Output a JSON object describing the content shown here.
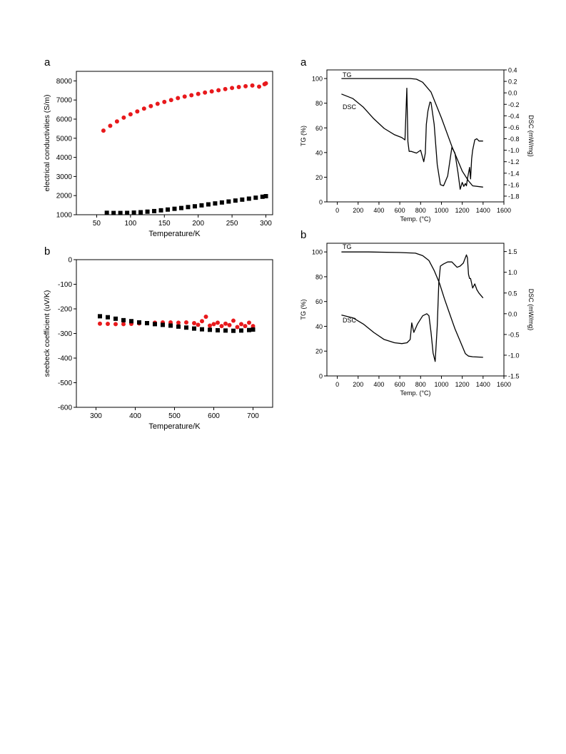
{
  "chart_data": [
    {
      "panel": "a",
      "type": "scatter",
      "xlabel": "Temperature/K",
      "ylabel": "electrical conductivities (S/m)",
      "xlim": [
        20,
        310
      ],
      "ylim": [
        1000,
        8500
      ],
      "xticks": [
        50,
        100,
        150,
        200,
        250,
        300
      ],
      "yticks": [
        1000,
        2000,
        3000,
        4000,
        5000,
        6000,
        7000,
        8000
      ],
      "grid": false,
      "series": [
        {
          "marker": "circle",
          "color": "#e8191c",
          "x": [
            60,
            70,
            80,
            90,
            100,
            110,
            120,
            130,
            140,
            150,
            160,
            170,
            180,
            190,
            200,
            210,
            220,
            230,
            240,
            250,
            260,
            270,
            280,
            290,
            298,
            300
          ],
          "y": [
            5400,
            5650,
            5880,
            6080,
            6250,
            6400,
            6550,
            6680,
            6800,
            6900,
            7000,
            7100,
            7180,
            7250,
            7320,
            7390,
            7450,
            7510,
            7570,
            7630,
            7680,
            7720,
            7760,
            7700,
            7830,
            7870
          ]
        },
        {
          "marker": "square",
          "color": "#000000",
          "x": [
            65,
            75,
            85,
            95,
            105,
            115,
            125,
            135,
            145,
            155,
            165,
            175,
            185,
            195,
            205,
            215,
            225,
            235,
            245,
            255,
            265,
            275,
            285,
            295,
            300
          ],
          "y": [
            1100,
            1090,
            1090,
            1095,
            1110,
            1130,
            1160,
            1190,
            1230,
            1270,
            1310,
            1350,
            1400,
            1440,
            1490,
            1540,
            1590,
            1640,
            1690,
            1740,
            1790,
            1840,
            1890,
            1940,
            1970
          ]
        }
      ]
    },
    {
      "panel": "b",
      "type": "scatter",
      "xlabel": "Temperature/K",
      "ylabel": "seebeck coefficient (uV/K)",
      "xlim": [
        250,
        750
      ],
      "ylim": [
        -600,
        0
      ],
      "xticks": [
        300,
        400,
        500,
        600,
        700
      ],
      "yticks": [
        0,
        -100,
        -200,
        -300,
        -400,
        -500,
        -600
      ],
      "grid": false,
      "series": [
        {
          "marker": "circle",
          "color": "#e8191c",
          "x": [
            310,
            330,
            350,
            370,
            390,
            410,
            430,
            450,
            470,
            490,
            510,
            530,
            550,
            560,
            570,
            580,
            590,
            600,
            610,
            620,
            630,
            640,
            650,
            660,
            670,
            680,
            690,
            700
          ],
          "y": [
            -260,
            -261,
            -262,
            -262,
            -261,
            -259,
            -258,
            -256,
            -255,
            -255,
            -256,
            -255,
            -258,
            -265,
            -250,
            -232,
            -268,
            -262,
            -256,
            -270,
            -260,
            -266,
            -248,
            -274,
            -262,
            -270,
            -256,
            -270
          ]
        },
        {
          "marker": "square",
          "color": "#000000",
          "x": [
            310,
            330,
            350,
            370,
            390,
            410,
            430,
            450,
            470,
            490,
            510,
            530,
            550,
            570,
            590,
            610,
            630,
            650,
            670,
            690,
            700
          ],
          "y": [
            -230,
            -234,
            -240,
            -246,
            -250,
            -255,
            -258,
            -262,
            -265,
            -268,
            -272,
            -276,
            -280,
            -283,
            -285,
            -287,
            -288,
            -289,
            -288,
            -286,
            -284
          ]
        }
      ]
    },
    {
      "panel": "a",
      "type": "line",
      "xlabel": "Temp. (°C)",
      "ylabel": "TG (%)",
      "y2label": "DSC (mW/mg)",
      "xlim": [
        -100,
        1600
      ],
      "ylim": [
        0,
        107
      ],
      "y2lim": [
        -1.9,
        0.4
      ],
      "xticks": [
        0,
        200,
        400,
        600,
        800,
        1000,
        1200,
        1400,
        1600
      ],
      "yticks": [
        0,
        20,
        40,
        60,
        80,
        100
      ],
      "y2ticks": [
        0.4,
        0.2,
        0.0,
        -0.2,
        -0.4,
        -0.6,
        -0.8,
        -1.0,
        -1.2,
        -1.4,
        -1.6,
        -1.8
      ],
      "y2ticklabels": [
        "0.4",
        "0.2",
        "0.0",
        "-0.2",
        "-0.4",
        "-0.6",
        "-0.8",
        "-1.0",
        "-1.2",
        "-1.4",
        "-1.6",
        "-1.8"
      ],
      "grid": false,
      "curve_labels": [
        "TG",
        "DSC"
      ],
      "series": [
        {
          "name": "TG",
          "axis": "left",
          "x": [
            40,
            300,
            600,
            700,
            760,
            820,
            900,
            1000,
            1100,
            1200,
            1260,
            1300,
            1400
          ],
          "y": [
            100,
            100,
            100,
            100,
            99.5,
            97,
            89,
            68,
            45,
            25,
            17,
            13,
            12
          ]
        },
        {
          "name": "DSC",
          "axis": "right",
          "x": [
            40,
            150,
            250,
            350,
            450,
            550,
            620,
            650,
            668,
            678,
            690,
            710,
            760,
            800,
            830,
            845,
            855,
            870,
            890,
            900,
            930,
            960,
            990,
            1020,
            1060,
            1100,
            1130,
            1160,
            1180,
            1200,
            1215,
            1230,
            1240,
            1250,
            1270,
            1280,
            1290,
            1300,
            1320,
            1340,
            1360,
            1400
          ],
          "y": [
            -0.02,
            -0.1,
            -0.25,
            -0.45,
            -0.62,
            -0.73,
            -0.78,
            -0.82,
            0.08,
            -0.85,
            -1.02,
            -1.02,
            -1.05,
            -1.0,
            -1.2,
            -1.05,
            -0.55,
            -0.32,
            -0.16,
            -0.17,
            -0.55,
            -1.25,
            -1.6,
            -1.62,
            -1.45,
            -0.95,
            -1.05,
            -1.4,
            -1.68,
            -1.56,
            -1.63,
            -1.58,
            -1.62,
            -1.5,
            -1.3,
            -1.5,
            -1.15,
            -1.0,
            -0.82,
            -0.8,
            -0.84,
            -0.84
          ]
        }
      ]
    },
    {
      "panel": "b",
      "type": "line",
      "xlabel": "Temp. (°C)",
      "ylabel": "TG (%)",
      "y2label": "DSC (mW/mg)",
      "xlim": [
        -100,
        1600
      ],
      "ylim": [
        0,
        107
      ],
      "y2lim": [
        -1.5,
        1.7
      ],
      "xticks": [
        0,
        200,
        400,
        600,
        800,
        1000,
        1200,
        1400,
        1600
      ],
      "yticks": [
        0,
        20,
        40,
        60,
        80,
        100
      ],
      "y2ticks": [
        1.5,
        1.0,
        0.5,
        0.0,
        -0.5,
        -1.0,
        -1.5
      ],
      "y2ticklabels": [
        "1.5",
        "1.0",
        "0.5",
        "0.0",
        "-0.5",
        "-1.0",
        "-1.5"
      ],
      "grid": false,
      "curve_labels": [
        "TG",
        "DSC"
      ],
      "series": [
        {
          "name": "TG",
          "axis": "left",
          "x": [
            40,
            300,
            600,
            750,
            820,
            880,
            930,
            980,
            1030,
            1080,
            1130,
            1180,
            1230,
            1260,
            1300,
            1400
          ],
          "y": [
            100,
            100,
            99.5,
            99,
            97,
            93,
            85,
            75,
            62,
            50,
            38,
            28,
            18,
            16,
            15.5,
            15
          ]
        },
        {
          "name": "DSC",
          "axis": "right",
          "x": [
            40,
            150,
            250,
            350,
            450,
            550,
            620,
            670,
            700,
            715,
            735,
            770,
            820,
            860,
            880,
            900,
            920,
            940,
            960,
            975,
            990,
            1020,
            1060,
            1100,
            1150,
            1180,
            1210,
            1240,
            1250,
            1260,
            1270,
            1280,
            1300,
            1320,
            1340,
            1360,
            1400
          ],
          "y": [
            -0.03,
            -0.1,
            -0.25,
            -0.45,
            -0.62,
            -0.7,
            -0.72,
            -0.7,
            -0.62,
            -0.22,
            -0.45,
            -0.25,
            -0.05,
            0.0,
            -0.05,
            -0.45,
            -0.95,
            -1.15,
            -0.3,
            0.75,
            1.15,
            1.2,
            1.25,
            1.25,
            1.12,
            1.15,
            1.22,
            1.42,
            1.35,
            0.95,
            0.85,
            0.85,
            0.62,
            0.72,
            0.58,
            0.5,
            0.38
          ]
        }
      ]
    }
  ]
}
